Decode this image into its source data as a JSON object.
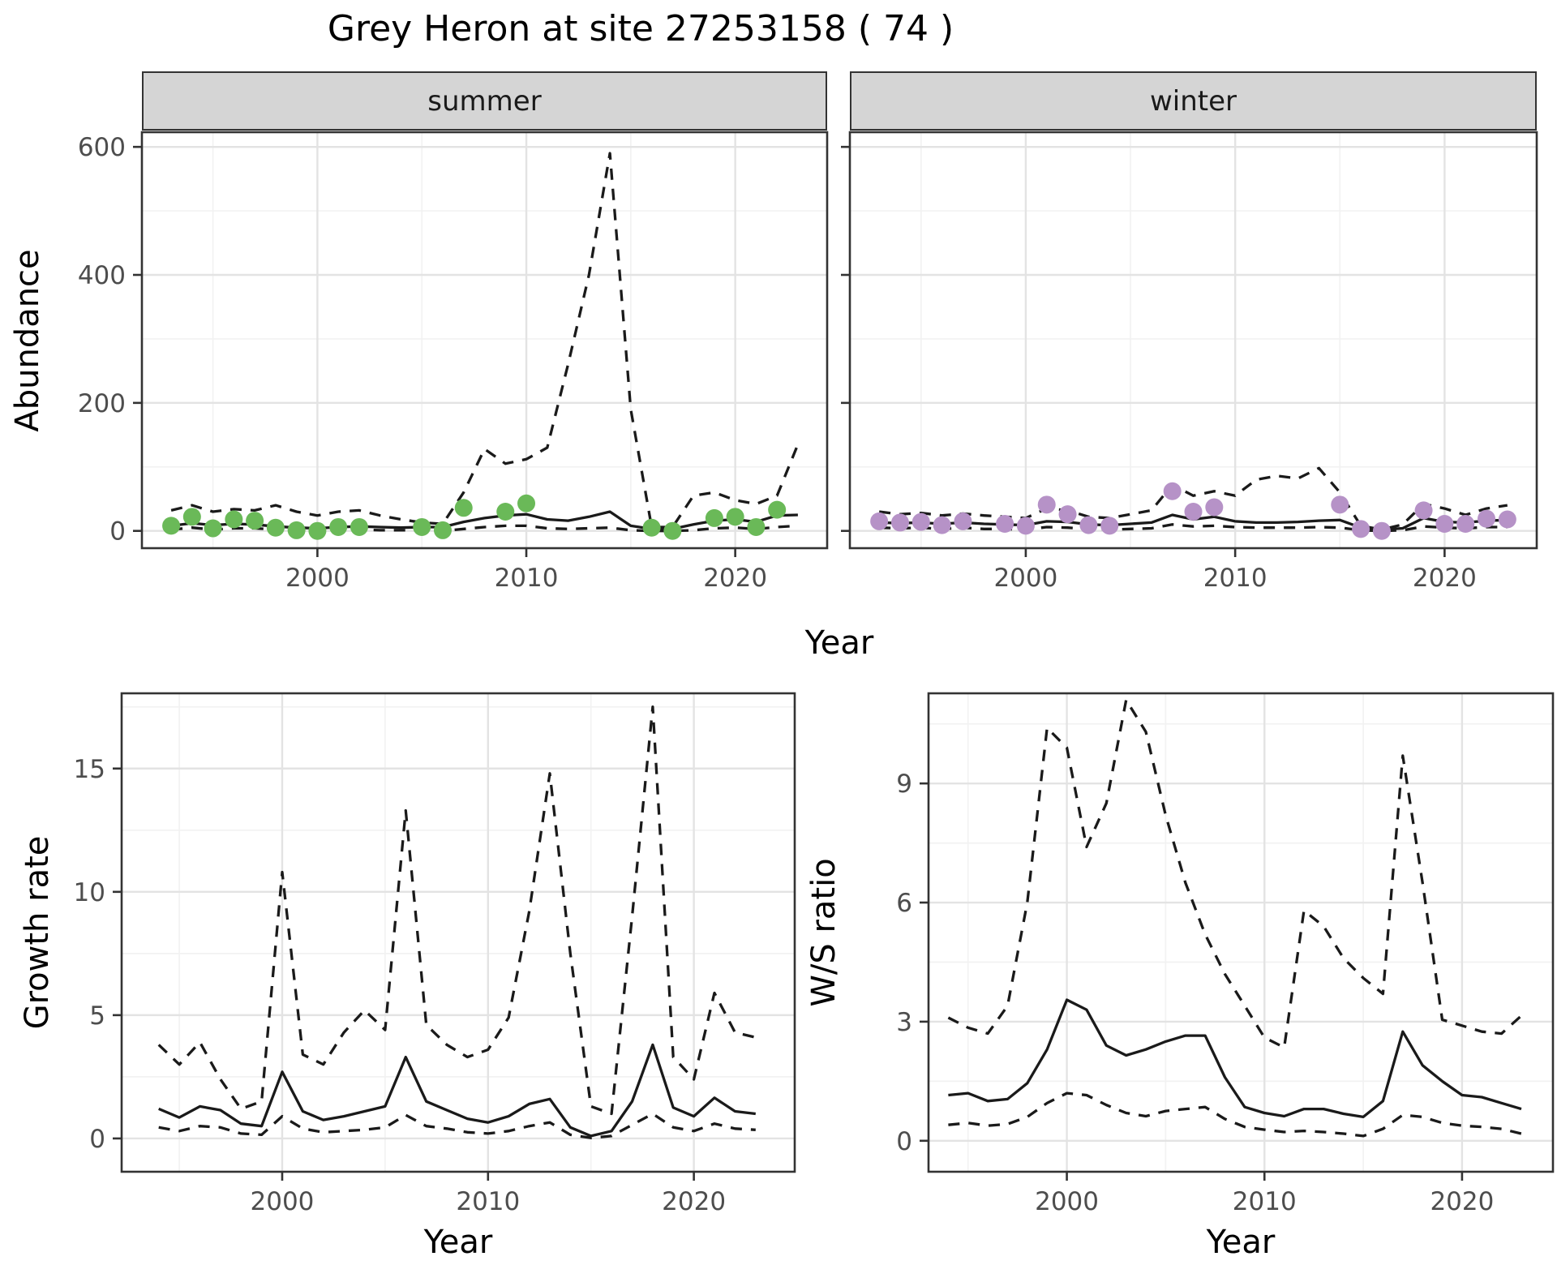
{
  "title": "Grey Heron at site 27253158 ( 74 )",
  "colors": {
    "point_summer": "#6ab958",
    "point_winter": "#b692c7",
    "line": "#1a1a1a",
    "grid_major": "#e3e3e3",
    "grid_minor": "#f2f2f2",
    "strip_bg": "#d5d5d5",
    "panel_border": "#333333",
    "tick_text": "#4d4d4d",
    "tick_mark": "#333333"
  },
  "chart_data": [
    {
      "type": "line",
      "facet_label": "summer",
      "xlabel": "Year",
      "ylabel": "Abundance",
      "x_range": [
        1991.6,
        2024.4
      ],
      "y_range": [
        -27,
        623
      ],
      "x_ticks": {
        "major": [
          2000,
          2010,
          2020
        ],
        "minor": [
          1995,
          2005,
          2015
        ],
        "labels": [
          "2000",
          "2010",
          "2020"
        ]
      },
      "y_ticks": {
        "major": [
          0,
          200,
          400,
          600
        ],
        "minor": [
          100,
          300,
          500
        ],
        "labels": [
          "0",
          "200",
          "400",
          "600"
        ]
      },
      "years": [
        1993,
        1994,
        1995,
        1996,
        1997,
        1998,
        1999,
        2000,
        2001,
        2002,
        2003,
        2004,
        2005,
        2006,
        2007,
        2008,
        2009,
        2010,
        2011,
        2012,
        2013,
        2014,
        2015,
        2016,
        2017,
        2018,
        2019,
        2020,
        2021,
        2022,
        2023
      ],
      "series": [
        {
          "name": "upper-ci",
          "style": "dashed",
          "values": [
            32,
            40,
            30,
            34,
            32,
            40,
            30,
            24,
            30,
            32,
            24,
            18,
            13,
            11,
            60,
            128,
            105,
            112,
            130,
            260,
            400,
            590,
            190,
            6,
            6,
            55,
            60,
            48,
            42,
            55,
            135
          ]
        },
        {
          "name": "estimate",
          "style": "solid",
          "values": [
            8,
            12,
            9,
            11,
            10,
            7,
            5,
            4,
            6,
            7,
            6,
            5,
            6,
            6,
            14,
            20,
            24,
            26,
            18,
            16,
            22,
            30,
            8,
            3,
            3,
            10,
            16,
            18,
            14,
            24,
            25
          ]
        },
        {
          "name": "lower-ci",
          "style": "dashed",
          "values": [
            2,
            5,
            2,
            4,
            4,
            2,
            1,
            0,
            2,
            2,
            1,
            1,
            1,
            0,
            3,
            6,
            8,
            8,
            4,
            3,
            4,
            5,
            1,
            0,
            0,
            1,
            4,
            5,
            3,
            6,
            8
          ]
        },
        {
          "name": "observed-counts",
          "style": "points",
          "color": "#6ab958",
          "point_years": [
            1993,
            1994,
            1995,
            1996,
            1997,
            1998,
            1999,
            2000,
            2001,
            2002,
            2005,
            2006,
            2007,
            2009,
            2010,
            2016,
            2017,
            2019,
            2020,
            2021,
            2022
          ],
          "values": [
            8,
            22,
            4,
            18,
            16,
            5,
            1,
            0,
            6,
            6,
            6,
            1,
            36,
            30,
            43,
            5,
            0,
            20,
            22,
            6,
            33
          ]
        }
      ]
    },
    {
      "type": "line",
      "facet_label": "winter",
      "xlabel": "Year",
      "ylabel": "Abundance",
      "x_range": [
        1991.6,
        2024.4
      ],
      "y_range": [
        -27,
        623
      ],
      "x_ticks": {
        "major": [
          2000,
          2010,
          2020
        ],
        "minor": [
          1995,
          2005,
          2015
        ],
        "labels": [
          "2000",
          "2010",
          "2020"
        ]
      },
      "y_ticks": {
        "major": [
          0,
          200,
          400,
          600
        ],
        "minor": [
          100,
          300,
          500
        ],
        "labels": [
          "0",
          "200",
          "400",
          "600"
        ]
      },
      "years": [
        1993,
        1994,
        1995,
        1996,
        1997,
        1998,
        1999,
        2000,
        2001,
        2002,
        2003,
        2004,
        2005,
        2006,
        2007,
        2008,
        2009,
        2010,
        2011,
        2012,
        2013,
        2014,
        2015,
        2016,
        2017,
        2018,
        2019,
        2020,
        2021,
        2022,
        2023
      ],
      "series": [
        {
          "name": "upper-ci",
          "style": "dashed",
          "values": [
            30,
            26,
            28,
            24,
            27,
            24,
            22,
            20,
            35,
            32,
            22,
            20,
            26,
            32,
            72,
            55,
            62,
            55,
            80,
            86,
            82,
            98,
            60,
            8,
            2,
            10,
            42,
            35,
            25,
            35,
            40
          ]
        },
        {
          "name": "estimate",
          "style": "solid",
          "values": [
            13,
            12,
            13,
            11,
            13,
            11,
            10,
            9,
            15,
            14,
            10,
            9,
            11,
            13,
            25,
            18,
            22,
            15,
            13,
            13,
            14,
            16,
            17,
            5,
            2,
            4,
            20,
            14,
            13,
            16,
            17
          ]
        },
        {
          "name": "lower-ci",
          "style": "dashed",
          "values": [
            5,
            4,
            5,
            3,
            5,
            3,
            3,
            2,
            6,
            5,
            3,
            2,
            3,
            4,
            10,
            7,
            8,
            6,
            5,
            5,
            5,
            6,
            5,
            1,
            0,
            1,
            7,
            5,
            4,
            6,
            6
          ]
        },
        {
          "name": "observed-counts",
          "style": "points",
          "color": "#b692c7",
          "point_years": [
            1993,
            1994,
            1995,
            1996,
            1997,
            1999,
            2000,
            2001,
            2002,
            2003,
            2004,
            2007,
            2008,
            2009,
            2015,
            2016,
            2017,
            2019,
            2020,
            2021,
            2022,
            2023
          ],
          "values": [
            15,
            13,
            14,
            9,
            15,
            11,
            8,
            41,
            26,
            9,
            8,
            62,
            30,
            37,
            41,
            3,
            0,
            32,
            11,
            11,
            19,
            18
          ]
        }
      ]
    },
    {
      "type": "line",
      "facet_label": null,
      "xlabel": "Year",
      "ylabel": "Growth rate",
      "x_range": [
        1992.2,
        2024.9
      ],
      "y_range": [
        -1.35,
        18.05
      ],
      "x_ticks": {
        "major": [
          2000,
          2010,
          2020
        ],
        "minor": [
          1995,
          2005,
          2015
        ],
        "labels": [
          "2000",
          "2010",
          "2020"
        ]
      },
      "y_ticks": {
        "major": [
          0,
          5,
          10,
          15
        ],
        "minor": [
          2.5,
          7.5,
          12.5,
          17.5
        ],
        "labels": [
          "0",
          "5",
          "10",
          "15"
        ]
      },
      "years": [
        1994,
        1995,
        1996,
        1997,
        1998,
        1999,
        2000,
        2001,
        2002,
        2003,
        2004,
        2005,
        2006,
        2007,
        2008,
        2009,
        2010,
        2011,
        2012,
        2013,
        2014,
        2015,
        2016,
        2017,
        2018,
        2019,
        2020,
        2021,
        2022,
        2023
      ],
      "series": [
        {
          "name": "upper-ci",
          "style": "dashed",
          "values": [
            3.8,
            3.0,
            3.9,
            2.4,
            1.2,
            1.5,
            10.8,
            3.4,
            3.0,
            4.3,
            5.2,
            4.4,
            13.3,
            4.6,
            3.8,
            3.3,
            3.6,
            4.9,
            9.2,
            14.8,
            7.5,
            1.3,
            1.0,
            9.0,
            17.5,
            3.3,
            2.4,
            5.9,
            4.3,
            4.1
          ]
        },
        {
          "name": "estimate",
          "style": "solid",
          "values": [
            1.2,
            0.85,
            1.3,
            1.15,
            0.6,
            0.5,
            2.7,
            1.1,
            0.75,
            0.9,
            1.1,
            1.3,
            3.3,
            1.5,
            1.15,
            0.8,
            0.65,
            0.9,
            1.4,
            1.6,
            0.45,
            0.1,
            0.3,
            1.5,
            3.8,
            1.25,
            0.9,
            1.65,
            1.1,
            1.0
          ]
        },
        {
          "name": "lower-ci",
          "style": "dashed",
          "values": [
            0.45,
            0.3,
            0.5,
            0.45,
            0.2,
            0.15,
            0.9,
            0.4,
            0.25,
            0.3,
            0.35,
            0.45,
            0.95,
            0.5,
            0.4,
            0.25,
            0.2,
            0.3,
            0.5,
            0.65,
            0.15,
            0.02,
            0.1,
            0.55,
            1.0,
            0.45,
            0.3,
            0.6,
            0.4,
            0.35
          ]
        }
      ]
    },
    {
      "type": "line",
      "facet_label": null,
      "xlabel": "Year",
      "ylabel": "W/S ratio",
      "x_range": [
        1993.0,
        2024.6
      ],
      "y_range": [
        -0.78,
        11.27
      ],
      "x_ticks": {
        "major": [
          2000,
          2010,
          2020
        ],
        "minor": [
          1995,
          2005,
          2015
        ],
        "labels": [
          "2000",
          "2010",
          "2020"
        ]
      },
      "y_ticks": {
        "major": [
          0,
          3,
          6,
          9
        ],
        "minor": [
          1.5,
          4.5,
          7.5,
          10.5
        ],
        "labels": [
          "0",
          "3",
          "6",
          "9"
        ]
      },
      "years": [
        1994,
        1995,
        1996,
        1997,
        1998,
        1999,
        2000,
        2001,
        2002,
        2003,
        2004,
        2005,
        2006,
        2007,
        2008,
        2009,
        2010,
        2011,
        2012,
        2013,
        2014,
        2015,
        2016,
        2017,
        2018,
        2019,
        2020,
        2021,
        2022,
        2023
      ],
      "series": [
        {
          "name": "upper-ci",
          "style": "dashed",
          "values": [
            3.1,
            2.85,
            2.7,
            3.4,
            6.0,
            10.4,
            9.9,
            7.4,
            8.5,
            11.1,
            10.3,
            8.2,
            6.5,
            5.2,
            4.2,
            3.4,
            2.6,
            2.35,
            5.8,
            5.4,
            4.6,
            4.1,
            3.7,
            9.7,
            6.5,
            3.05,
            2.9,
            2.75,
            2.7,
            3.15
          ]
        },
        {
          "name": "estimate",
          "style": "solid",
          "values": [
            1.15,
            1.2,
            1.0,
            1.05,
            1.45,
            2.3,
            3.55,
            3.3,
            2.4,
            2.15,
            2.3,
            2.5,
            2.65,
            2.65,
            1.6,
            0.85,
            0.7,
            0.62,
            0.8,
            0.8,
            0.68,
            0.6,
            1.0,
            2.75,
            1.9,
            1.5,
            1.15,
            1.1,
            0.95,
            0.8
          ]
        },
        {
          "name": "lower-ci",
          "style": "dashed",
          "values": [
            0.4,
            0.45,
            0.38,
            0.42,
            0.6,
            0.95,
            1.2,
            1.15,
            0.9,
            0.7,
            0.62,
            0.75,
            0.8,
            0.85,
            0.55,
            0.35,
            0.28,
            0.22,
            0.25,
            0.22,
            0.18,
            0.12,
            0.3,
            0.65,
            0.6,
            0.45,
            0.38,
            0.35,
            0.3,
            0.18
          ]
        }
      ]
    }
  ]
}
